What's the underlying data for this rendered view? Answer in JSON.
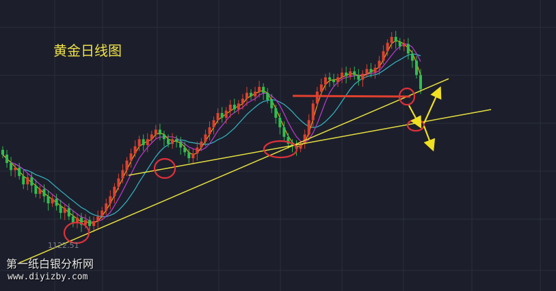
{
  "chart_data": {
    "type": "candlestick",
    "title": "黄金日线图",
    "annotations": {
      "low_label": "1122.51",
      "watermark_cn": "第一纸白银分析网",
      "watermark_url": "www.diyizby.com"
    },
    "colors": {
      "background": "#1c1f2b",
      "grid": "#2a2e3b",
      "up": "#e0402f",
      "down": "#2fbf4f",
      "ma_short": "#e6a81c",
      "ma_mid": "#c23ad6",
      "ma_long": "#35b8c8",
      "trendline": "#e8e040",
      "level": "#e0402f",
      "circle": "#e0303a",
      "arrow": "#f0e020"
    },
    "closes": [
      1183,
      1176,
      1170,
      1172,
      1165,
      1158,
      1164,
      1157,
      1150,
      1154,
      1148,
      1142,
      1146,
      1140,
      1134,
      1138,
      1131,
      1126,
      1130,
      1124,
      1128,
      1123,
      1127,
      1131,
      1136,
      1142,
      1148,
      1156,
      1163,
      1170,
      1178,
      1184,
      1190,
      1196,
      1191,
      1196,
      1200,
      1204,
      1200,
      1196,
      1192,
      1196,
      1194,
      1189,
      1185,
      1180,
      1184,
      1189,
      1194,
      1200,
      1206,
      1212,
      1218,
      1214,
      1220,
      1225,
      1221,
      1226,
      1230,
      1235,
      1232,
      1236,
      1240,
      1235,
      1229,
      1222,
      1214,
      1206,
      1198,
      1192,
      1190,
      1188,
      1192,
      1200,
      1212,
      1226,
      1236,
      1242,
      1248,
      1246,
      1244,
      1248,
      1252,
      1249,
      1253,
      1250,
      1246,
      1251,
      1255,
      1252,
      1256,
      1262,
      1270,
      1277,
      1282,
      1278,
      1274,
      1276,
      1268,
      1262,
      1250,
      1238
    ]
  }
}
